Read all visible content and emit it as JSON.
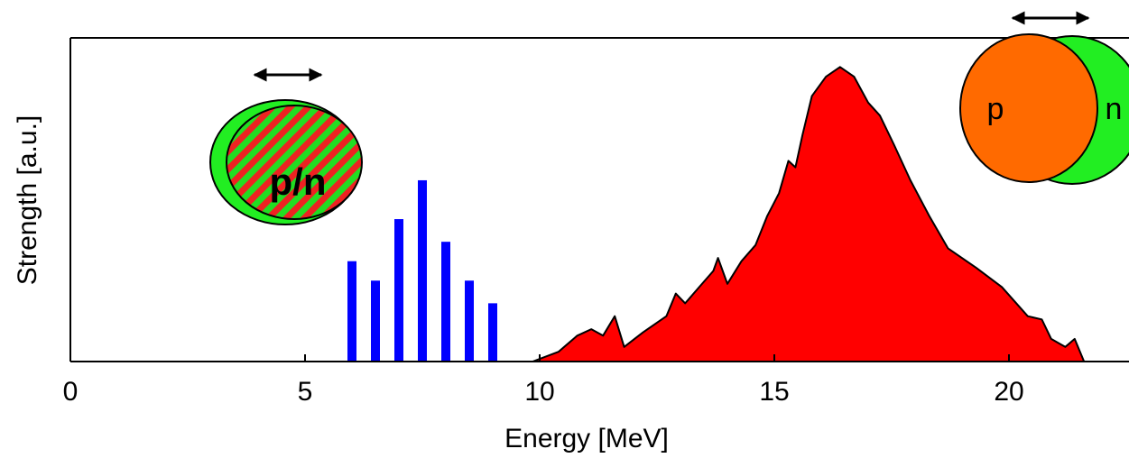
{
  "chart_data": {
    "type": "combo",
    "x_label": "Energy [MeV]",
    "y_label": "Strength [a.u.]",
    "xlim": [
      0,
      22.6
    ],
    "ylim": [
      0,
      1
    ],
    "xticks": [
      0,
      5,
      10,
      15,
      20
    ],
    "series": [
      {
        "type": "bar",
        "color": "#0000ff",
        "x": [
          6,
          6.5,
          7,
          7.5,
          8,
          8.5,
          9
        ],
        "values": [
          0.31,
          0.25,
          0.44,
          0.56,
          0.37,
          0.25,
          0.18
        ]
      },
      {
        "type": "area",
        "color": "#ff0000",
        "x": [
          9.85,
          10.4,
          10.8,
          11.1,
          11.35,
          11.6,
          11.8,
          12.2,
          12.7,
          12.9,
          13.1,
          13.4,
          13.7,
          13.8,
          14.0,
          14.3,
          14.6,
          14.85,
          15.1,
          15.3,
          15.45,
          15.6,
          15.8,
          16.1,
          16.4,
          16.7,
          17.0,
          17.25,
          17.55,
          17.9,
          18.3,
          18.7,
          19.3,
          19.85,
          20.4,
          20.7,
          20.9,
          21.2,
          21.4,
          21.6
        ],
        "values": [
          0,
          0.03,
          0.08,
          0.1,
          0.08,
          0.14,
          0.045,
          0.09,
          0.14,
          0.21,
          0.18,
          0.23,
          0.28,
          0.32,
          0.24,
          0.31,
          0.36,
          0.45,
          0.52,
          0.62,
          0.6,
          0.7,
          0.82,
          0.88,
          0.91,
          0.88,
          0.8,
          0.76,
          0.67,
          0.56,
          0.45,
          0.35,
          0.29,
          0.23,
          0.14,
          0.13,
          0.07,
          0.045,
          0.07,
          0
        ]
      }
    ],
    "annotations": [
      "p/n",
      "p",
      "n"
    ]
  }
}
